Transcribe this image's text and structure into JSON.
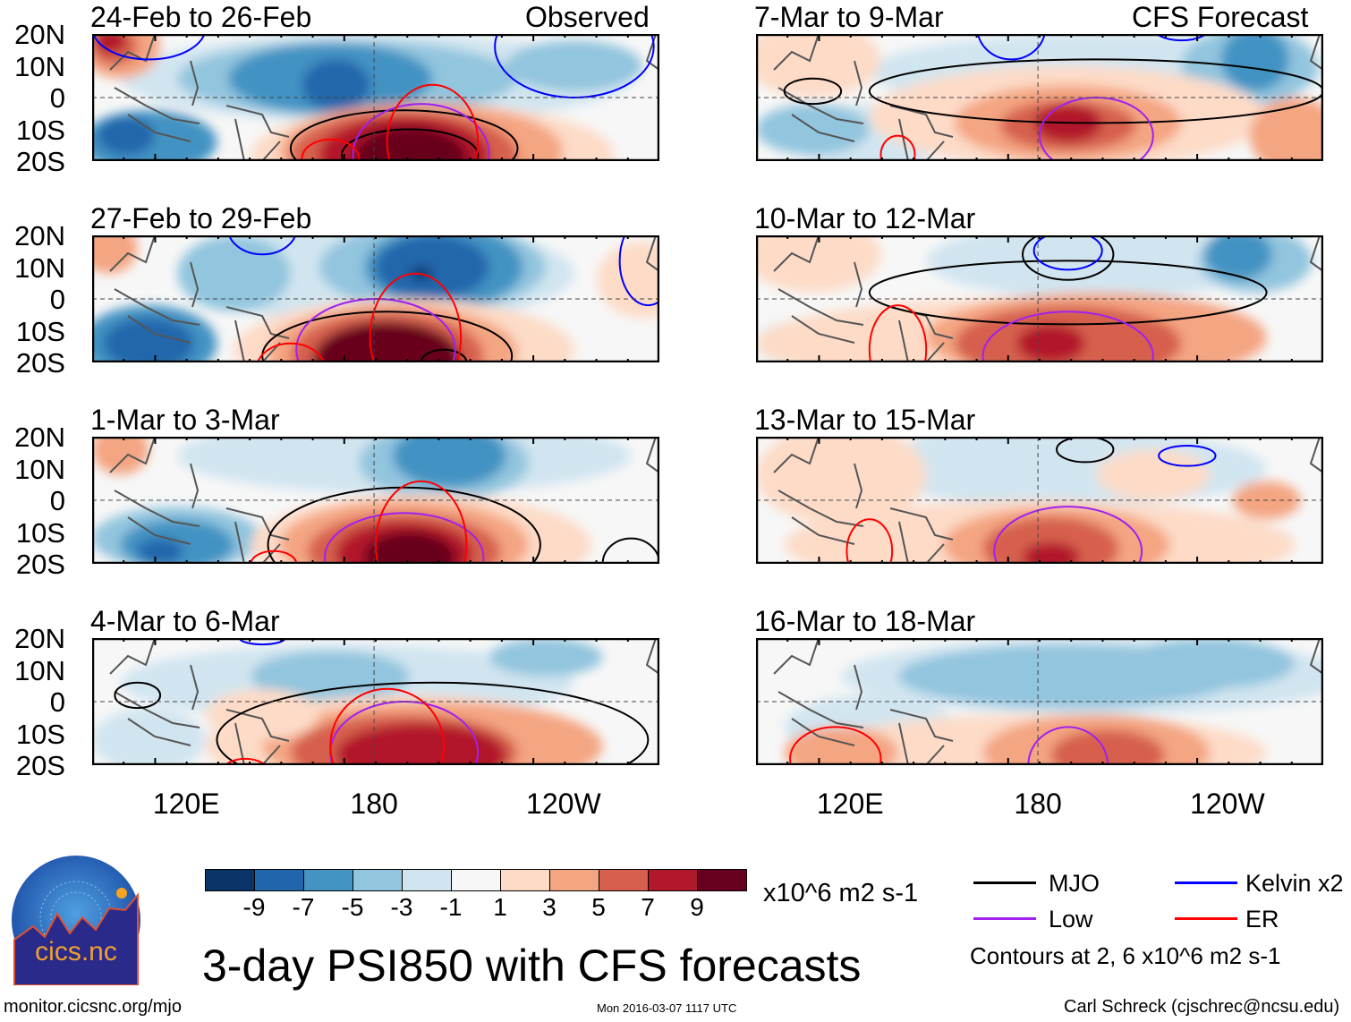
{
  "columns": {
    "left_label": "Observed",
    "right_label": "CFS Forecast"
  },
  "panels": [
    {
      "title": "24-Feb to 26-Feb"
    },
    {
      "title": "27-Feb to 29-Feb"
    },
    {
      "title": "1-Mar to 3-Mar"
    },
    {
      "title": "4-Mar to 6-Mar"
    },
    {
      "title": "7-Mar to 9-Mar"
    },
    {
      "title": "10-Mar to 12-Mar"
    },
    {
      "title": "13-Mar to 15-Mar"
    },
    {
      "title": "16-Mar to 18-Mar"
    }
  ],
  "lat_labels": [
    "20N",
    "10N",
    "0",
    "10S",
    "20S"
  ],
  "lon_labels": [
    "120E",
    "180",
    "120W"
  ],
  "colorbar": {
    "colors": [
      "#0a3468",
      "#2166ac",
      "#4393c3",
      "#92c5de",
      "#d1e5f0",
      "#f7f7f7",
      "#fddbc7",
      "#f4a582",
      "#d6604d",
      "#b2182b",
      "#67001f"
    ],
    "ticks": [
      "-9",
      "-7",
      "-5",
      "-3",
      "-1",
      "1",
      "3",
      "5",
      "7",
      "9"
    ],
    "units": "x10^6 m2 s-1"
  },
  "legend": {
    "items": [
      {
        "label": "MJO",
        "color": "#000000"
      },
      {
        "label": "Kelvin x2",
        "color": "#0000ff"
      },
      {
        "label": "Low",
        "color": "#a020f0"
      },
      {
        "label": "ER",
        "color": "#ff0000"
      }
    ],
    "note": "Contours at 2, 6 x10^6 m2 s-1"
  },
  "logo": {
    "text": "cics.nc",
    "ring_text": "Cooperative Institute for Climate and Satellites"
  },
  "title": "3-day PSI850 with CFS forecasts",
  "footer": {
    "url": "monitor.cicsnc.org/mjo",
    "timestamp": "Mon 2016-03-07 1117 UTC",
    "author": "Carl Schreck (cjschrec@ncsu.edu)"
  }
}
